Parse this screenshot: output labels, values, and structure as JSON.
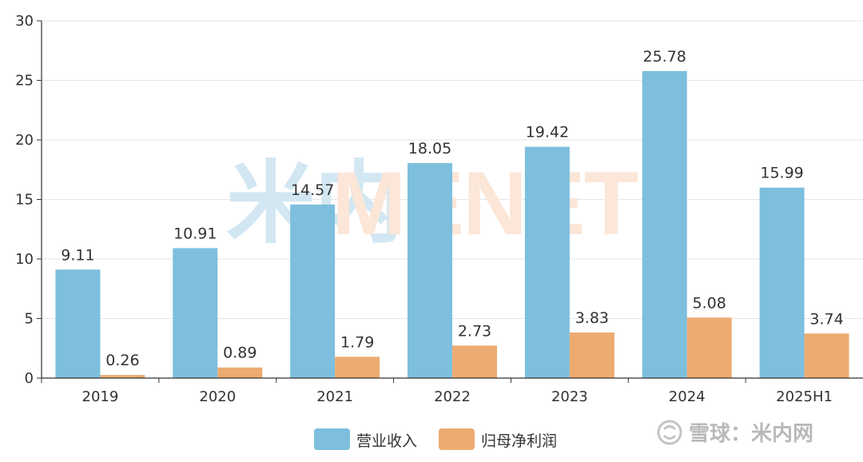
{
  "chart_data": {
    "type": "bar",
    "title": "",
    "xlabel": "",
    "ylabel": "",
    "categories": [
      "2019",
      "2020",
      "2021",
      "2022",
      "2023",
      "2024",
      "2025H1"
    ],
    "series": [
      {
        "name": "营业收入",
        "color": "#7dbfdd",
        "values": [
          9.11,
          10.91,
          14.57,
          18.05,
          19.42,
          25.78,
          15.99
        ]
      },
      {
        "name": "归母净利润",
        "color": "#edab72",
        "values": [
          0.26,
          0.89,
          1.79,
          2.73,
          3.83,
          5.08,
          3.74
        ]
      }
    ],
    "ylim": [
      0,
      30
    ],
    "yticks": [
      0,
      5,
      10,
      15,
      20,
      25,
      30
    ],
    "grid": true,
    "legend": "bottom-center",
    "data_labels": true
  },
  "watermark": {
    "cn": "米内",
    "en": "MENET",
    "cn_color": "#d2e7f2",
    "en_color": "#fbe6d8"
  },
  "source_badge": {
    "icon": "snowball-icon",
    "text": "雪球：米内网"
  }
}
